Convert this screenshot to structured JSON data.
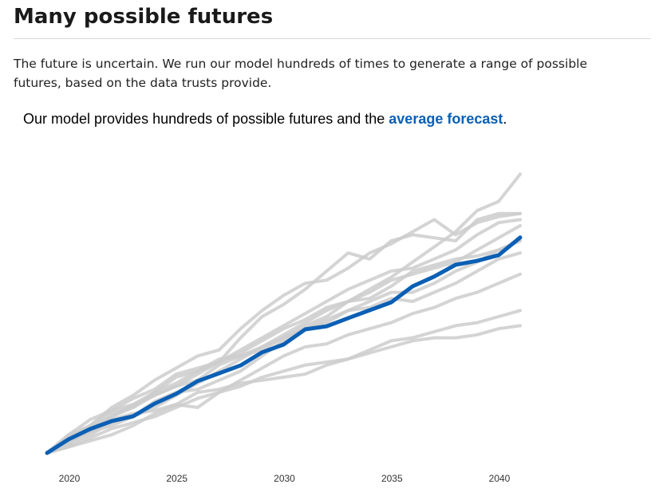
{
  "page": {
    "title": "Many possible futures",
    "intro": "The future is uncertain. We run our model hundreds of times to generate a range of possible futures, based on the data trusts provide."
  },
  "chart_heading": {
    "prefix": "Our model provides hundreds of possible futures and the ",
    "highlight": "average forecast",
    "suffix": "."
  },
  "colors": {
    "scenario": "#cccccc",
    "average": "#0b5fb4"
  },
  "chart_data": {
    "type": "line",
    "xlim": [
      2019,
      2042
    ],
    "ylim": [
      0,
      100
    ],
    "x_ticks": [
      2020,
      2025,
      2030,
      2035,
      2040
    ],
    "x_tick_labels": [
      "2020",
      "2025",
      "2030",
      "2035",
      "2040"
    ],
    "y_axis_visible": false,
    "grid": false,
    "x": [
      2019,
      2020,
      2021,
      2022,
      2023,
      2024,
      2025,
      2026,
      2027,
      2028,
      2029,
      2030,
      2031,
      2032,
      2033,
      2034,
      2035,
      2036,
      2037,
      2038,
      2039,
      2040,
      2041
    ],
    "series": [
      {
        "role": "average",
        "values": [
          0,
          4.5,
          7.9,
          10.5,
          12.1,
          16.3,
          19.5,
          23.7,
          26.3,
          28.9,
          33.2,
          35.8,
          40.8,
          41.8,
          44.5,
          47.1,
          49.7,
          55.0,
          58.2,
          62.1,
          63.4,
          65.3,
          71.1
        ]
      },
      {
        "role": "scenario",
        "values": [
          0,
          4,
          7,
          9,
          12,
          15,
          19,
          23,
          27,
          31,
          35,
          39,
          43,
          47,
          50,
          54,
          58,
          63,
          68,
          73,
          80,
          83,
          92
        ]
      },
      {
        "role": "scenario",
        "values": [
          0,
          6,
          11,
          14,
          18,
          21,
          26,
          28,
          30,
          38,
          45,
          49,
          54,
          60,
          66,
          64,
          70,
          72,
          71,
          70,
          77,
          79,
          79
        ]
      },
      {
        "role": "scenario",
        "values": [
          0,
          5,
          9,
          15,
          19,
          24,
          28,
          32,
          34,
          41,
          47,
          52,
          56,
          57,
          61,
          66,
          69,
          73,
          77,
          72,
          76,
          78,
          79
        ]
      },
      {
        "role": "scenario",
        "values": [
          0,
          3,
          8,
          12,
          16,
          19,
          22,
          26,
          30,
          34,
          38,
          42,
          46,
          50,
          54,
          57,
          60,
          61,
          64,
          67,
          72,
          76,
          77
        ]
      },
      {
        "role": "scenario",
        "values": [
          0,
          5,
          8,
          13,
          15,
          20,
          23,
          27,
          30,
          33,
          37,
          41,
          44,
          48,
          50,
          53,
          57,
          59,
          61,
          63,
          67,
          71,
          75
        ]
      },
      {
        "role": "scenario",
        "values": [
          0,
          4,
          7,
          12,
          15,
          19,
          22,
          24,
          29,
          32,
          35,
          38,
          41,
          44,
          47,
          50,
          53,
          53,
          56,
          60,
          63,
          67,
          70
        ]
      },
      {
        "role": "scenario",
        "values": [
          0,
          6,
          9,
          14,
          16,
          20,
          25,
          27,
          31,
          32,
          34,
          38,
          42,
          45,
          50,
          51,
          55,
          60,
          62,
          64,
          65,
          67,
          70
        ]
      },
      {
        "role": "scenario",
        "values": [
          0,
          3,
          6,
          10,
          12,
          17,
          20,
          21,
          24,
          27,
          32,
          37,
          41,
          43,
          47,
          48,
          51,
          50,
          53,
          56,
          60,
          64,
          66
        ]
      },
      {
        "role": "scenario",
        "values": [
          0,
          5,
          7,
          11,
          13,
          14,
          16,
          15,
          20,
          24,
          28,
          32,
          35,
          36,
          39,
          41,
          43,
          46,
          48,
          51,
          53,
          56,
          59
        ]
      },
      {
        "role": "scenario",
        "values": [
          0,
          2,
          4,
          6,
          9,
          13,
          16,
          20,
          21,
          23,
          24,
          25,
          26,
          29,
          31,
          34,
          37,
          38,
          40,
          42,
          43,
          45,
          47
        ]
      },
      {
        "role": "scenario",
        "values": [
          0,
          2,
          5,
          8,
          10,
          12,
          15,
          18,
          20,
          22,
          25,
          27,
          29,
          30,
          31,
          33,
          35,
          37,
          38,
          38,
          39,
          41,
          42
        ]
      }
    ]
  }
}
